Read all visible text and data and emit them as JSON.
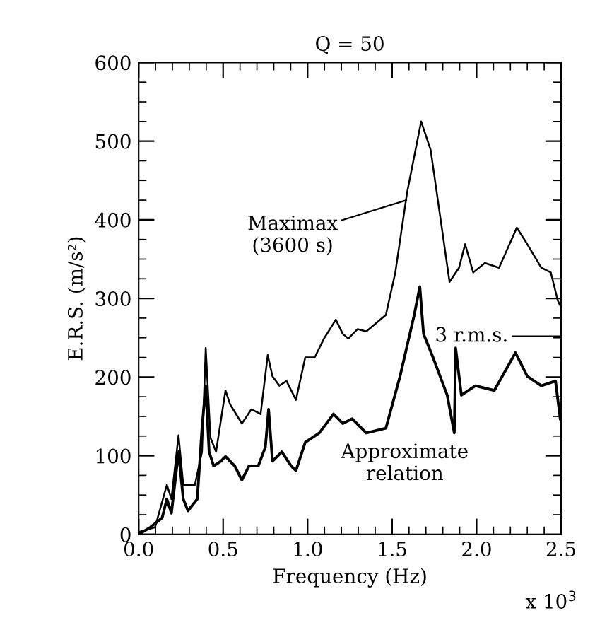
{
  "chart_data": {
    "type": "line",
    "title": "Q = 50",
    "xlabel": "Frequency (Hz)",
    "ylabel": "E.R.S. (m/s²)",
    "xlim": [
      0,
      2.5
    ],
    "ylim": [
      0,
      600
    ],
    "xticks": [
      {
        "value": 0,
        "label": "0.0"
      },
      {
        "value": 0.5,
        "label": "0.5"
      },
      {
        "value": 1,
        "label": "1.0"
      },
      {
        "value": 1.5,
        "label": "1.5"
      },
      {
        "value": 2,
        "label": "2.0"
      },
      {
        "value": 2.5,
        "label": "2.5"
      }
    ],
    "yticks": [
      0,
      100,
      200,
      300,
      400,
      500,
      600
    ],
    "grid": false,
    "legend": false,
    "marker": "none",
    "line_style": "solid",
    "annotations": [
      {
        "text": "Maximax\n(3600 s)",
        "x": 1.585,
        "y": 425
      },
      "3 r.m.s.",
      "Approximate\nrelation",
      "x 10$^{3}$"
    ],
    "series": [
      {
        "color": "#000000",
        "x": [
          0,
          0.097,
          0.167,
          0.194,
          0.236,
          0.264,
          0.333,
          0.375,
          0.397,
          0.425,
          0.458,
          0.514,
          0.542,
          0.611,
          0.667,
          0.722,
          0.764,
          0.792,
          0.833,
          0.875,
          0.931,
          0.986,
          1.042,
          1.097,
          1.167,
          1.208,
          1.241,
          1.296,
          1.347,
          1.463,
          1.519,
          1.589,
          1.672,
          1.728,
          1.784,
          1.84,
          1.896,
          1.932,
          1.98,
          2.049,
          2.133,
          2.238,
          2.3,
          2.383,
          2.439,
          2.481,
          2.495
        ],
        "values": [
          3,
          9,
          63,
          45,
          126,
          63,
          63,
          105,
          237,
          123,
          105,
          183,
          165,
          141,
          159,
          153,
          228,
          201,
          189,
          195,
          171,
          225,
          225,
          249,
          273,
          255,
          249,
          261,
          258,
          279,
          333,
          435,
          525,
          489,
          405,
          321,
          339,
          369,
          333,
          345,
          339,
          390,
          369,
          339,
          333,
          297,
          291
        ]
      },
      {
        "color": "#000000",
        "x": [
          0,
          0.069,
          0.139,
          0.167,
          0.194,
          0.236,
          0.264,
          0.292,
          0.347,
          0.375,
          0.397,
          0.417,
          0.444,
          0.486,
          0.514,
          0.569,
          0.611,
          0.653,
          0.708,
          0.75,
          0.769,
          0.792,
          0.847,
          0.903,
          0.931,
          0.986,
          1.069,
          1.153,
          1.208,
          1.264,
          1.347,
          1.463,
          1.547,
          1.631,
          1.664,
          1.686,
          1.742,
          1.826,
          1.868,
          1.876,
          1.91,
          1.993,
          2.105,
          2.23,
          2.3,
          2.383,
          2.467,
          2.495
        ],
        "values": [
          0,
          9,
          21,
          45,
          27,
          105,
          45,
          30,
          45,
          135,
          189,
          105,
          87,
          93,
          99,
          87,
          69,
          87,
          87,
          111,
          159,
          93,
          105,
          87,
          81,
          117,
          129,
          153,
          141,
          147,
          129,
          135,
          201,
          279,
          315,
          255,
          225,
          177,
          129,
          237,
          177,
          189,
          183,
          231,
          201,
          189,
          195,
          147
        ]
      }
    ]
  }
}
